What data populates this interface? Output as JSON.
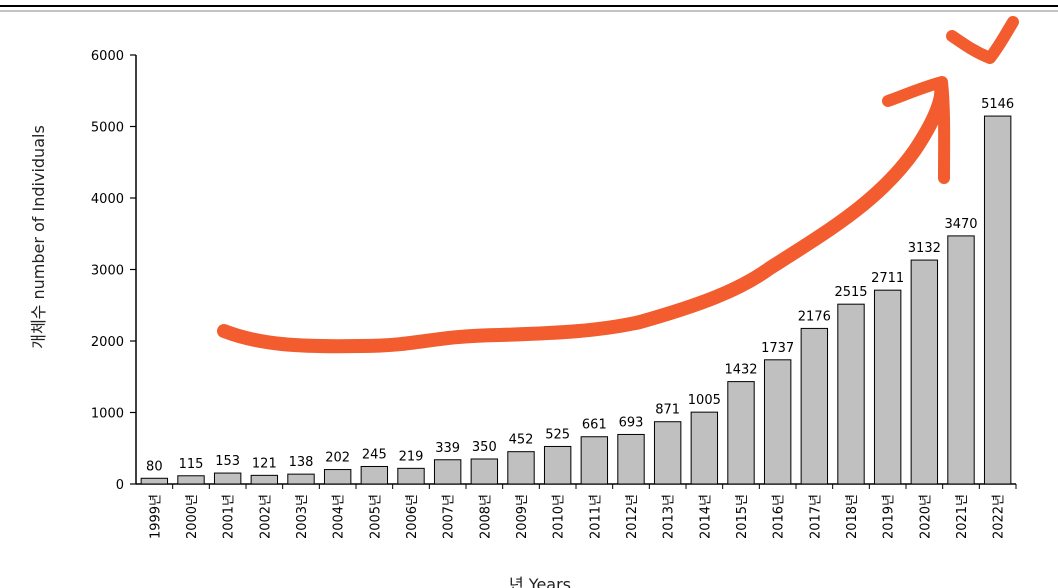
{
  "chart_data": {
    "type": "bar",
    "title": "",
    "ylabel": "개체수 number of Individuals",
    "xlabel": "년 Years",
    "ylim": [
      0,
      6000
    ],
    "yticks": [
      0,
      1000,
      2000,
      3000,
      4000,
      5000,
      6000
    ],
    "grid": false,
    "categories": [
      "1999년",
      "2000년",
      "2001년",
      "2002년",
      "2003년",
      "2004년",
      "2005년",
      "2006년",
      "2007년",
      "2008년",
      "2009년",
      "2010년",
      "2011년",
      "2012년",
      "2013년",
      "2014년",
      "2015년",
      "2016년",
      "2017년",
      "2018년",
      "2019년",
      "2020년",
      "2021년",
      "2022년"
    ],
    "values": [
      80,
      115,
      153,
      121,
      138,
      202,
      245,
      219,
      339,
      350,
      452,
      525,
      661,
      693,
      871,
      1005,
      1432,
      1737,
      2176,
      2515,
      2711,
      3132,
      3470,
      5146
    ],
    "bar_color": "#c0c0c0",
    "bar_edge_color": "#000000",
    "annotation": {
      "type": "hand-drawn upward trend arrow",
      "color": "#f25c2e"
    }
  }
}
